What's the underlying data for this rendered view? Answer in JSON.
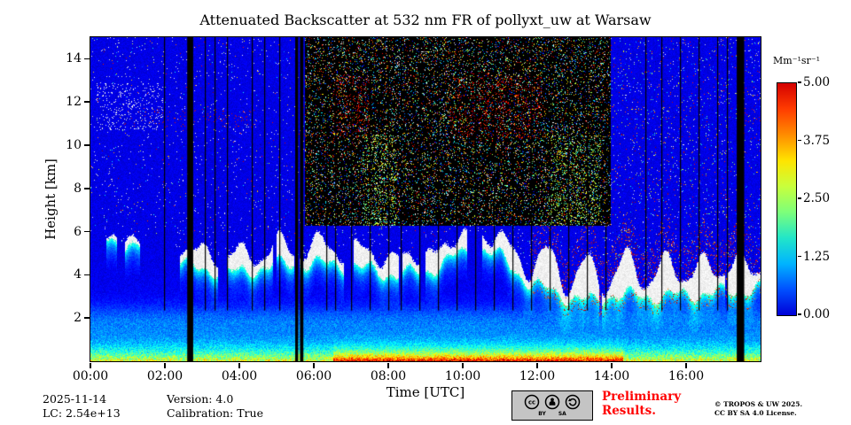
{
  "title": "Attenuated Backscatter at 532 nm FR of pollyxt_uw at Warsaw",
  "axes": {
    "x_label": "Time [UTC]",
    "y_label": "Height [km]",
    "x_ticks": [
      "00:00",
      "02:00",
      "04:00",
      "06:00",
      "08:00",
      "10:00",
      "12:00",
      "14:00",
      "16:00"
    ],
    "y_ticks": [
      "2",
      "4",
      "6",
      "8",
      "10",
      "12",
      "14"
    ]
  },
  "colorbar": {
    "unit": "Mm⁻¹sr⁻¹",
    "tick_labels": [
      "5.00",
      "3.75",
      "2.50",
      "1.25",
      "0.00"
    ],
    "gradient": [
      "#0000d8",
      "#0050ff",
      "#00b4ff",
      "#22e6c8",
      "#7dff7a",
      "#c8ff3c",
      "#ffe400",
      "#ff8c00",
      "#ff3c00",
      "#d40000"
    ]
  },
  "footer": {
    "date": "2025-11-14",
    "lc_constant": "LC: 2.54e+13",
    "version": "Version: 4.0",
    "calibration": "Calibration: True",
    "preliminary_line1": "Preliminary",
    "preliminary_line2": "Results.",
    "license_line1": "© TROPOS & UW 2025.",
    "license_line2": "CC BY SA 4.0 License.",
    "badge": {
      "by": "BY",
      "sa": "SA"
    }
  },
  "chart_data": {
    "type": "heatmap",
    "title": "Attenuated Backscatter at 532 nm FR of pollyxt_uw at Warsaw",
    "xlabel": "Time [UTC]",
    "ylabel": "Height [km]",
    "x_range": [
      0,
      18
    ],
    "y_range_km": [
      0,
      15
    ],
    "x_ticks_hours": [
      0,
      2,
      4,
      6,
      8,
      10,
      12,
      14,
      16
    ],
    "y_ticks_km": [
      2,
      4,
      6,
      8,
      10,
      12,
      14
    ],
    "colorbar": {
      "label": "Mm⁻¹sr⁻¹",
      "vmin": 0,
      "vmax": 5,
      "ticks": [
        0,
        1.25,
        2.5,
        3.75,
        5
      ],
      "colormap": "jet"
    },
    "features": {
      "surface_aerosol": {
        "top_km": 2.2,
        "typical_value": 2.5,
        "midday_enhancement_hours": [
          6.5,
          14.3
        ]
      },
      "cloud_base_track": [
        [
          0,
          5.55
        ],
        [
          1,
          5.5
        ],
        [
          2,
          4.9
        ],
        [
          2.7,
          4.35
        ],
        [
          4,
          4.1
        ],
        [
          5,
          4.5
        ],
        [
          6,
          4.55
        ],
        [
          7,
          4.45
        ],
        [
          8,
          4.05
        ],
        [
          9,
          4.15
        ],
        [
          9.8,
          4.9
        ],
        [
          10.5,
          5.2
        ],
        [
          11,
          4.9
        ],
        [
          11.8,
          3.6
        ],
        [
          12.5,
          3.2
        ],
        [
          13,
          2.9
        ],
        [
          13.5,
          2.8
        ],
        [
          14,
          3.1
        ],
        [
          15,
          3.0
        ],
        [
          16,
          3.1
        ],
        [
          17,
          3.2
        ],
        [
          18,
          3.4
        ]
      ],
      "masked_noise_region": {
        "hours": [
          5.74,
          13.97
        ],
        "km_above": 6.3
      },
      "calibration_bars_hours": [
        [
          2.6,
          2.76
        ],
        [
          5.5,
          5.58
        ],
        [
          5.63,
          5.72
        ],
        [
          17.36,
          17.56
        ]
      ],
      "thin_line_hours": [
        1.97,
        3.08,
        3.33,
        3.66,
        4.33,
        4.66,
        5.08,
        6.33,
        6.58,
        7.0,
        7.5,
        8.0,
        8.33,
        8.83,
        9.33,
        9.83,
        10.33,
        10.83,
        11.33,
        11.83,
        12.33,
        12.83,
        13.33,
        13.83,
        14.9,
        15.33,
        15.83,
        16.33,
        16.83,
        17.1
      ],
      "cirrus_patch": {
        "hours": [
          0.15,
          1.95
        ],
        "km": [
          10.7,
          12.9
        ]
      },
      "red_speckle_band": {
        "hours": [
          0.9,
          4.4
        ],
        "km": [
          10.85,
          11.7
        ]
      }
    }
  }
}
